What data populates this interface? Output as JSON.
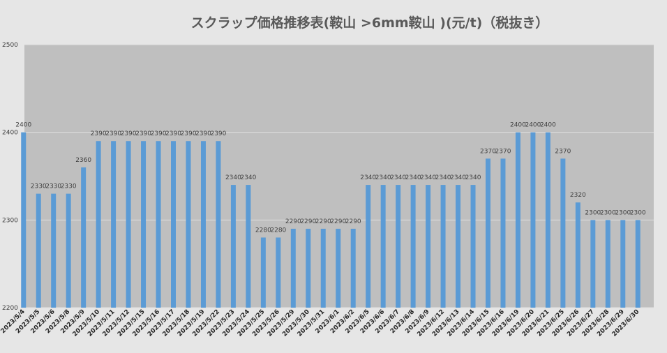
{
  "chart_data": {
    "type": "bar",
    "title": "スクラップ価格推移表(鞍山 >6mm鞍山 )(元/t)（税抜き）",
    "xlabel": "",
    "ylabel": "",
    "ylim": [
      2200,
      2500
    ],
    "yticks": [
      "2200",
      "2300",
      "2400",
      "2500"
    ],
    "ytick_values": [
      2200,
      2300,
      2400,
      2500
    ],
    "grid": true,
    "legend": "none",
    "bar_color": "#5b9bd5",
    "plot_background": "#bfbfbf",
    "page_background": "#e6e6e6",
    "categories": [
      "2023/5/4",
      "2023/5/5",
      "2023/5/6",
      "2023/5/8",
      "2023/5/9",
      "2023/5/10",
      "2023/5/11",
      "2023/5/12",
      "2023/5/15",
      "2023/5/16",
      "2023/5/17",
      "2023/5/18",
      "2023/5/19",
      "2023/5/22",
      "2023/5/23",
      "2023/5/24",
      "2023/5/25",
      "2023/5/26",
      "2023/5/29",
      "2023/5/30",
      "2023/5/31",
      "2023/6/1",
      "2023/6/2",
      "2023/6/5",
      "2023/6/6",
      "2023/6/7",
      "2023/6/8",
      "2023/6/9",
      "2023/6/12",
      "2023/6/13",
      "2023/6/14",
      "2023/6/15",
      "2023/6/16",
      "2023/6/19",
      "2023/6/20",
      "2023/6/21",
      "2023/6/25",
      "2023/6/26",
      "2023/6/27",
      "2023/6/28",
      "2023/6/29",
      "2023/6/30"
    ],
    "values": [
      2400,
      2330,
      2330,
      2330,
      2360,
      2390,
      2390,
      2390,
      2390,
      2390,
      2390,
      2390,
      2390,
      2390,
      2340,
      2340,
      2280,
      2280,
      2290,
      2290,
      2290,
      2290,
      2290,
      2340,
      2340,
      2340,
      2340,
      2340,
      2340,
      2340,
      2340,
      2370,
      2370,
      2400,
      2400,
      2400,
      2370,
      2320,
      2300,
      2300,
      2300,
      2300
    ],
    "data_labels": [
      "2400",
      "2330",
      "2330",
      "2330",
      "2360",
      "2390",
      "2390",
      "2390",
      "2390",
      "2390",
      "2390",
      "2390",
      "2390",
      "2390",
      "2340",
      "2340",
      "2280",
      "2280",
      "2290",
      "2290",
      "2290",
      "2290",
      "2290",
      "2340",
      "2340",
      "2340",
      "2340",
      "2340",
      "2340",
      "2340",
      "2340",
      "2370",
      "2370",
      "2400",
      "2400",
      "2400",
      "2370",
      "2320",
      "2300",
      "2300",
      "2300",
      "2300"
    ]
  }
}
